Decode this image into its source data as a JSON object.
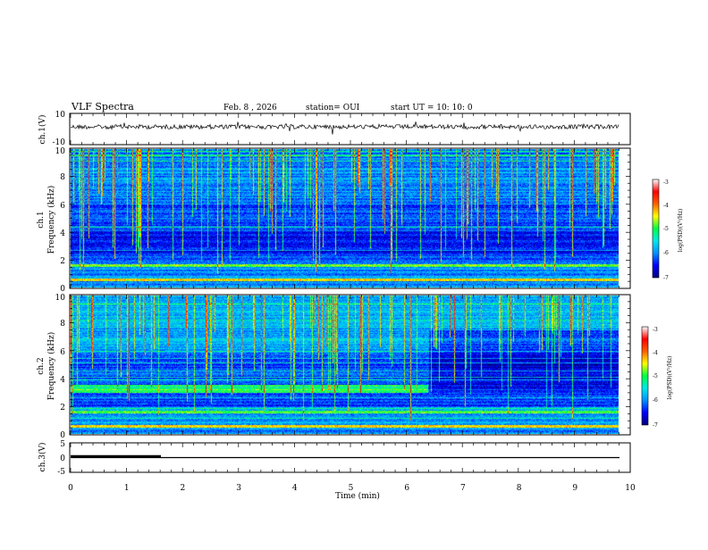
{
  "header": {
    "title": "VLF Spectra",
    "date": "Feb. 8 , 2026",
    "station": "station= OUI",
    "start": "start  UT  =   10: 10: 0"
  },
  "chart_data": {
    "type": "heatmap",
    "x": {
      "label": "Time  (min)",
      "range": [
        0,
        10
      ],
      "ticks": [
        "0",
        "1",
        "2",
        "3",
        "4",
        "5",
        "6",
        "7",
        "8",
        "9",
        "10"
      ]
    },
    "panels": [
      {
        "name": "ch1-waveform",
        "ylabel": "ch.1(V)",
        "ylim": [
          -10,
          10
        ],
        "ticks": [
          "10",
          "-10"
        ]
      },
      {
        "name": "ch1-spectrogram",
        "ylabel": "ch.1",
        "ylabel2": "Frequency  (kHz)",
        "ylim": [
          0,
          10
        ],
        "ticks": [
          "0",
          "2",
          "4",
          "6",
          "8",
          "10"
        ]
      },
      {
        "name": "ch2-spectrogram",
        "ylabel": "ch.2",
        "ylabel2": "Frequency  (kHz)",
        "ylim": [
          0,
          10
        ],
        "ticks": [
          "0",
          "2",
          "4",
          "6",
          "8",
          "10"
        ]
      },
      {
        "name": "ch3-level",
        "ylabel": "ch.3(V)",
        "ylim": [
          -5,
          5
        ],
        "ticks": [
          "5",
          "0",
          "-5"
        ],
        "series": [
          {
            "name": "level-high",
            "x": [
              0,
              1.6
            ],
            "y": [
              0.2,
              0.2
            ]
          },
          {
            "name": "level-low",
            "x": [
              0,
              9.8
            ],
            "y": [
              0,
              0
            ]
          }
        ]
      }
    ],
    "colorbar": {
      "label": "log(PSD)(V²/Hz)",
      "range": [
        -7,
        -3
      ],
      "ticks": [
        "-3",
        "-4",
        "-5",
        "-6",
        "-7"
      ],
      "colors": [
        "#00007a",
        "#0000ff",
        "#0090ff",
        "#00e8e8",
        "#00ff40",
        "#ffff00",
        "#ff6000",
        "#ff0000",
        "#ffffff"
      ]
    },
    "data_end_min": 9.8,
    "ch2_transition_min": 6.4
  }
}
